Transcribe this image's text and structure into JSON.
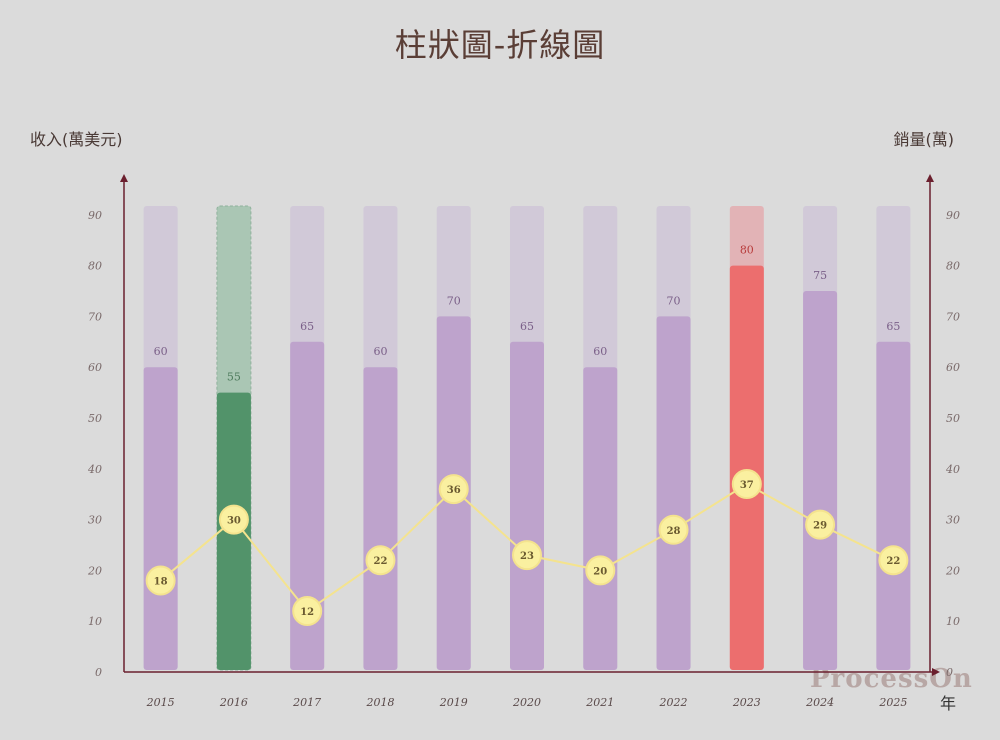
{
  "title": "柱狀圖-折線圖",
  "watermark": "ProcessOn",
  "chart_data": {
    "type": "bar",
    "title": "柱狀圖-折線圖",
    "ylabel": "收入(萬美元)",
    "y2label": "銷量(萬)",
    "xlabel": "年",
    "categories": [
      "2015",
      "2016",
      "2017",
      "2018",
      "2019",
      "2020",
      "2021",
      "2022",
      "2023",
      "2024",
      "2025"
    ],
    "y_ticks": [
      0,
      10,
      20,
      30,
      40,
      50,
      60,
      70,
      80,
      90
    ],
    "y2_ticks": [
      0,
      10,
      20,
      30,
      40,
      50,
      60,
      70,
      80,
      90
    ],
    "ylim": [
      0,
      90
    ],
    "y2lim": [
      0,
      90
    ],
    "series": [
      {
        "type": "bar",
        "values": [
          60,
          55,
          65,
          60,
          70,
          65,
          60,
          70,
          80,
          75,
          65
        ],
        "color": "#bea3cc",
        "highlight_colors": {
          "1": "#52936a",
          "8": "#ec6e6e"
        }
      },
      {
        "type": "line",
        "values": [
          18,
          30,
          12,
          22,
          36,
          23,
          20,
          28,
          37,
          29,
          22
        ],
        "color": "#f4e38e"
      }
    ],
    "grid": false
  }
}
